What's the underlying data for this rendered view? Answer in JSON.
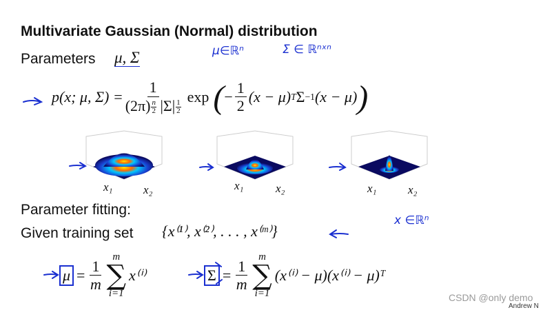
{
  "title": "Multivariate Gaussian (Normal) distribution",
  "parameters": {
    "label": "Parameters",
    "symbols": "μ, Σ",
    "note_mu": "μ∈ℝⁿ",
    "note_sigma": "Σ ∈ ℝⁿˣⁿ"
  },
  "density": {
    "lhs": "p(x; μ, Σ) =",
    "numerator": "1",
    "den_base": "(2π)",
    "den_exp_num": "n",
    "den_exp_den": "2",
    "den_det": "|Σ|",
    "det_exp_num": "1",
    "det_exp_den": "2",
    "exp": "exp",
    "open": "(",
    "minus": "−",
    "half_num": "1",
    "half_den": "2",
    "left_term": "(x − μ)",
    "transpose": "T",
    "sigma": "Σ",
    "inverse": "−1",
    "right_term": "(x − μ)",
    "close": ")"
  },
  "plots": [
    {
      "x1": "x₁",
      "x2": "x₂"
    },
    {
      "x1": "x₁",
      "x2": "x₂"
    },
    {
      "x1": "x₁",
      "x2": "x₂"
    }
  ],
  "fitting": {
    "heading": "Parameter fitting:",
    "given": "Given training set",
    "set": "{x⁽¹⁾, x⁽²⁾, . . . , x⁽ᵐ⁾}",
    "note_x": "x ∈ℝⁿ"
  },
  "estimates": {
    "mu": {
      "symbol": "μ",
      "equals": "=",
      "num": "1",
      "den": "m",
      "upper": "m",
      "sum": "∑",
      "lower": "i=1",
      "term": "x⁽ⁱ⁾"
    },
    "sigma": {
      "symbol": "Σ",
      "equals": "=",
      "num": "1",
      "den": "m",
      "upper": "m",
      "sum": "∑",
      "lower": "i=1",
      "term": "(x⁽ⁱ⁾ − μ)(x⁽ⁱ⁾ − μ)ᵀ"
    }
  },
  "watermark": "CSDN @only demo",
  "author": "Andrew N"
}
